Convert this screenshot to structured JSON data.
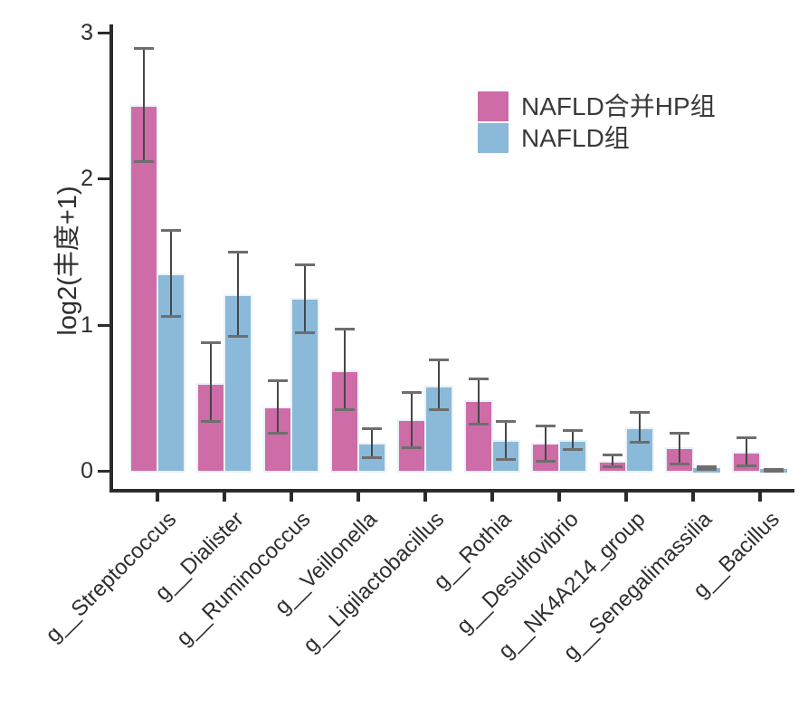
{
  "chart_data": {
    "type": "bar",
    "title": "",
    "xlabel": "",
    "ylabel": "log2(丰度+1)",
    "ylim": [
      0,
      3.1
    ],
    "yticks": [
      0,
      1,
      2,
      3
    ],
    "grid": false,
    "legend_position": "upper-right-inside",
    "x_tick_rotation": 45,
    "error_bars": true,
    "categories": [
      "g__Streptococcus",
      "g__Dialister",
      "g__Ruminococcus",
      "g__Veillonella",
      "g__Ligilactobacillus",
      "g__Rothia",
      "g__Desulfovibrio",
      "g__NK4A214_group",
      "g__Senegalimassilia",
      "g__Bacillus"
    ],
    "series": [
      {
        "name": "NAFLD合并HP组",
        "color": "#CD6CA7",
        "values": [
          2.5,
          0.6,
          0.44,
          0.69,
          0.35,
          0.48,
          0.19,
          0.07,
          0.16,
          0.13
        ],
        "err_low": [
          2.12,
          0.34,
          0.26,
          0.42,
          0.16,
          0.32,
          0.07,
          0.03,
          0.05,
          0.04
        ],
        "err_high": [
          2.89,
          0.88,
          0.62,
          0.97,
          0.54,
          0.63,
          0.31,
          0.11,
          0.26,
          0.23
        ]
      },
      {
        "name": "NAFLD组",
        "color": "#8BB9D9",
        "values": [
          1.35,
          1.21,
          1.18,
          0.19,
          0.58,
          0.21,
          0.21,
          0.3,
          0.02,
          0.01
        ],
        "err_low": [
          1.06,
          0.92,
          0.95,
          0.09,
          0.42,
          0.08,
          0.15,
          0.2,
          0.01,
          0.0
        ],
        "err_high": [
          1.65,
          1.5,
          1.41,
          0.29,
          0.76,
          0.34,
          0.28,
          0.4,
          0.03,
          0.01
        ]
      }
    ],
    "styles": {
      "bar_edge": "#EAF2F8",
      "errorbar_line": "#474747",
      "errorbar_cap": "#6E6E6E",
      "axis": "#2B2B2B",
      "text": "#2E2E2E"
    }
  }
}
